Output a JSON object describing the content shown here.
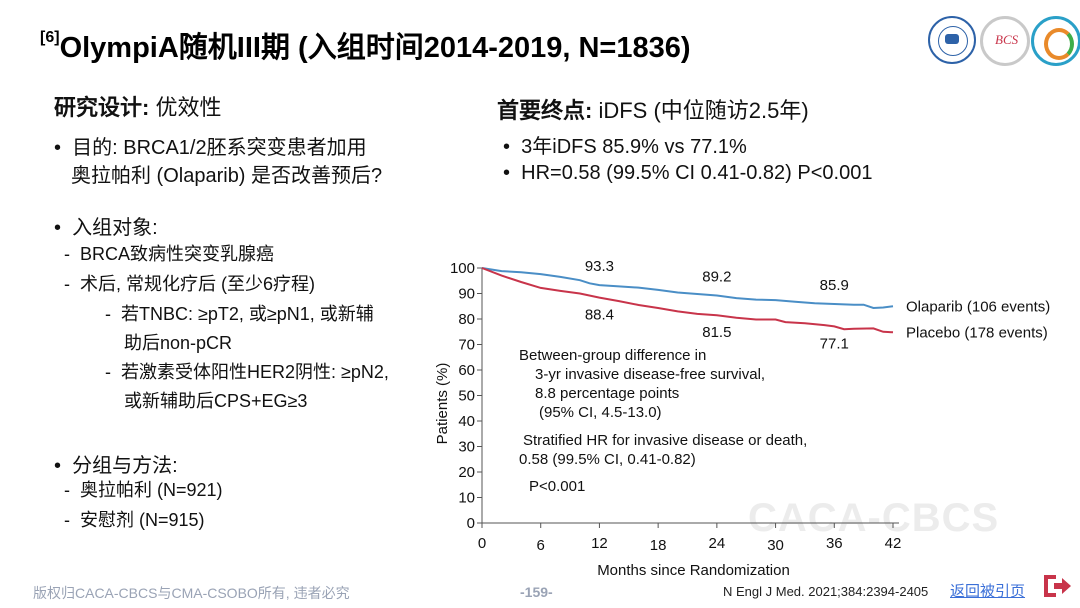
{
  "slide": {
    "title_ref": "[6]",
    "title": "OlympiA随机III期 (入组时间2014-2019, N=1836)",
    "left": {
      "design_label": "研究设计:",
      "design_value": "优效性",
      "purpose_line1": "目的: BRCA1/2胚系突变患者加用",
      "purpose_line2": "奥拉帕利 (Olaparib) 是否改善预后?",
      "population_label": "入组对象:",
      "pop_item1": "BRCA致病性突变乳腺癌",
      "pop_item2": "术后, 常规化疗后 (至少6疗程)",
      "pop_sub1_line1": "若TNBC: ≥pT2, 或≥pN1, 或新辅",
      "pop_sub1_line2": "助后non-pCR",
      "pop_sub2_line1": "若激素受体阳性HER2阴性: ≥pN2,",
      "pop_sub2_line2": "或新辅助后CPS+EG≥3",
      "groups_label": "分组与方法:",
      "group1": "奥拉帕利 (N=921)",
      "group2": "安慰剂 (N=915)"
    },
    "right": {
      "endpoint_label": "首要终点:",
      "endpoint_value": "iDFS (中位随访2.5年)",
      "result1": "3年iDFS 85.9% vs 77.1%",
      "result2": "HR=0.58 (99.5% CI 0.41-0.82) P<0.001"
    },
    "footer": {
      "copyright": "版权归CACA-CBCS与CMA-CSOBO所有, 违者必究",
      "page": "-159-",
      "citation": "N Engl J Med. 2021;384:2394-2405",
      "back_link": "返回被引页"
    },
    "watermark": "CACA-CBCS",
    "logos": [
      "institution-seal-logo",
      "bcs-logo",
      "society-logo"
    ],
    "colors": {
      "olaparib": "#4a8ec6",
      "placebo": "#c8344a",
      "footer_text": "#9aa3b5"
    }
  },
  "chart_data": {
    "type": "line",
    "xlabel": "Months since Randomization",
    "ylabel": "Patients (%)",
    "xlim": [
      0,
      42
    ],
    "ylim": [
      0,
      100
    ],
    "x_ticks": [
      0,
      6,
      12,
      18,
      24,
      30,
      36,
      42
    ],
    "y_ticks": [
      0,
      10,
      20,
      30,
      40,
      50,
      60,
      70,
      80,
      90,
      100
    ],
    "series": [
      {
        "name": "Olaparib (106 events)",
        "x": [
          0,
          2,
          4,
          6,
          8,
          10,
          11,
          12,
          14,
          16,
          18,
          20,
          22,
          24,
          26,
          28,
          30,
          32,
          34,
          36,
          38,
          39,
          40,
          41,
          42
        ],
        "y": [
          100,
          98.8,
          98.3,
          97.6,
          96.5,
          95.2,
          94,
          93.3,
          92.8,
          92.3,
          91.4,
          90.4,
          89.8,
          89.2,
          88.2,
          87.6,
          87.4,
          86.8,
          86.2,
          85.9,
          85.6,
          85.6,
          84.3,
          84.5,
          85
        ]
      },
      {
        "name": "Placebo (178 events)",
        "x": [
          0,
          2,
          4,
          6,
          8,
          10,
          12,
          14,
          16,
          18,
          20,
          22,
          24,
          26,
          28,
          30,
          31,
          33,
          35,
          36,
          37,
          38,
          40,
          41,
          42
        ],
        "y": [
          100,
          97,
          94.5,
          92.2,
          91,
          90,
          88.4,
          87,
          85.5,
          84.3,
          83,
          82,
          81.5,
          80.5,
          79.8,
          79.8,
          78.8,
          78.3,
          77.6,
          77.1,
          76,
          76.2,
          76.3,
          75,
          74.8
        ]
      }
    ],
    "point_labels": [
      {
        "series": "Olaparib (106 events)",
        "x": 12,
        "text": "93.3"
      },
      {
        "series": "Olaparib (106 events)",
        "x": 24,
        "text": "89.2"
      },
      {
        "series": "Olaparib (106 events)",
        "x": 36,
        "text": "85.9"
      },
      {
        "series": "Placebo (178 events)",
        "x": 12,
        "text": "88.4"
      },
      {
        "series": "Placebo (178 events)",
        "x": 24,
        "text": "81.5"
      },
      {
        "series": "Placebo (178 events)",
        "x": 36,
        "text": "77.1"
      }
    ],
    "annotations": [
      "Between-group difference in",
      "3-yr invasive disease-free survival,",
      "8.8 percentage points",
      "(95% CI, 4.5-13.0)",
      "Stratified HR for invasive disease or death,",
      "0.58 (99.5% CI, 0.41-0.82)",
      "P<0.001"
    ]
  }
}
